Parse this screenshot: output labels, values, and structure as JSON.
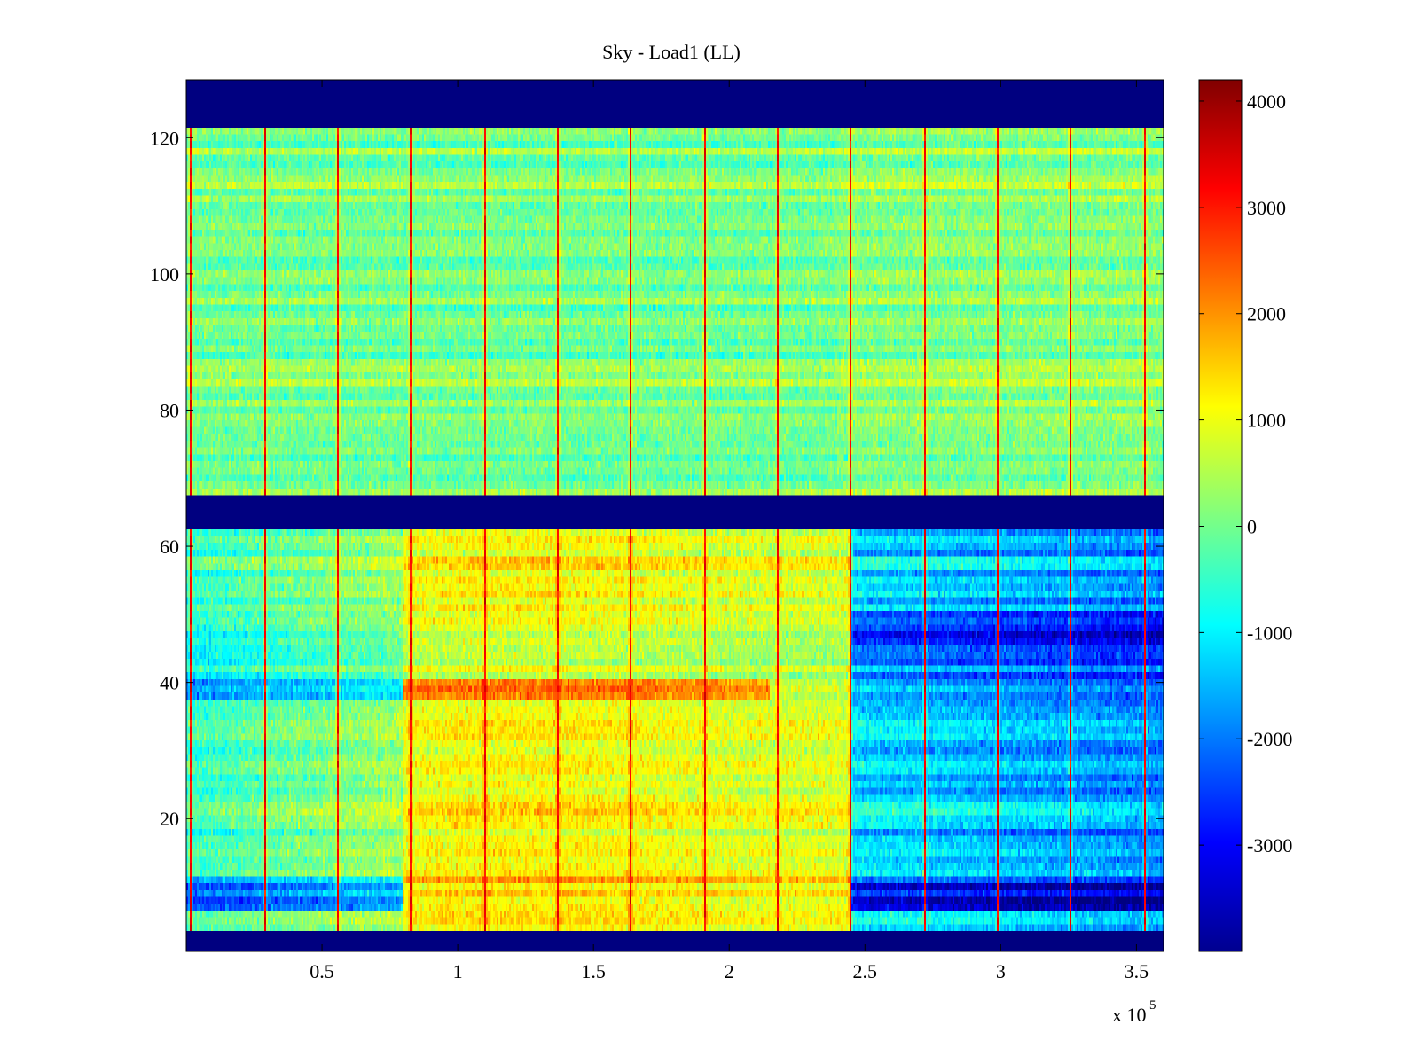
{
  "chart_data": {
    "type": "heatmap",
    "title": "Sky - Load1 (LL)",
    "xlabel": "",
    "ylabel": "",
    "x_multiplier_label": "x 10",
    "x_multiplier_exponent": "5",
    "xlim": [
      0,
      360000
    ],
    "ylim": [
      0.5,
      128.5
    ],
    "x_ticks": [
      {
        "value": 50000,
        "label": "0.5"
      },
      {
        "value": 100000,
        "label": "1"
      },
      {
        "value": 150000,
        "label": "1.5"
      },
      {
        "value": 200000,
        "label": "2"
      },
      {
        "value": 250000,
        "label": "2.5"
      },
      {
        "value": 300000,
        "label": "3"
      },
      {
        "value": 350000,
        "label": "3.5"
      }
    ],
    "y_ticks": [
      {
        "value": 20,
        "label": "20"
      },
      {
        "value": 40,
        "label": "40"
      },
      {
        "value": 60,
        "label": "60"
      },
      {
        "value": 80,
        "label": "80"
      },
      {
        "value": 100,
        "label": "100"
      },
      {
        "value": 120,
        "label": "120"
      }
    ],
    "colormap": "jet",
    "clim": [
      -4000,
      4200
    ],
    "colorbar_ticks": [
      {
        "value": 4000,
        "label": "4000"
      },
      {
        "value": 3000,
        "label": "3000"
      },
      {
        "value": 2000,
        "label": "2000"
      },
      {
        "value": 1000,
        "label": "1000"
      },
      {
        "value": 0,
        "label": "0"
      },
      {
        "value": -1000,
        "label": "-1000"
      },
      {
        "value": -2000,
        "label": "-2000"
      },
      {
        "value": -3000,
        "label": "-3000"
      }
    ],
    "masked_value": -4000,
    "masked_row_ranges": [
      [
        1,
        3
      ],
      [
        63,
        67
      ],
      [
        122,
        128
      ]
    ],
    "spike_columns_x": [
      1500,
      28500,
      55500,
      82500,
      109500,
      136500,
      163500,
      190500,
      217500,
      244500,
      271500,
      298500,
      325500,
      352500
    ],
    "spike_value": 3200,
    "upper_block": {
      "rows": [
        68,
        121
      ],
      "mean_value": 0
    },
    "lower_block": {
      "rows": [
        4,
        62
      ],
      "early_value": -600,
      "middle_value": 900,
      "late_value": -1300,
      "transition_x": [
        80000,
        245000
      ]
    }
  }
}
